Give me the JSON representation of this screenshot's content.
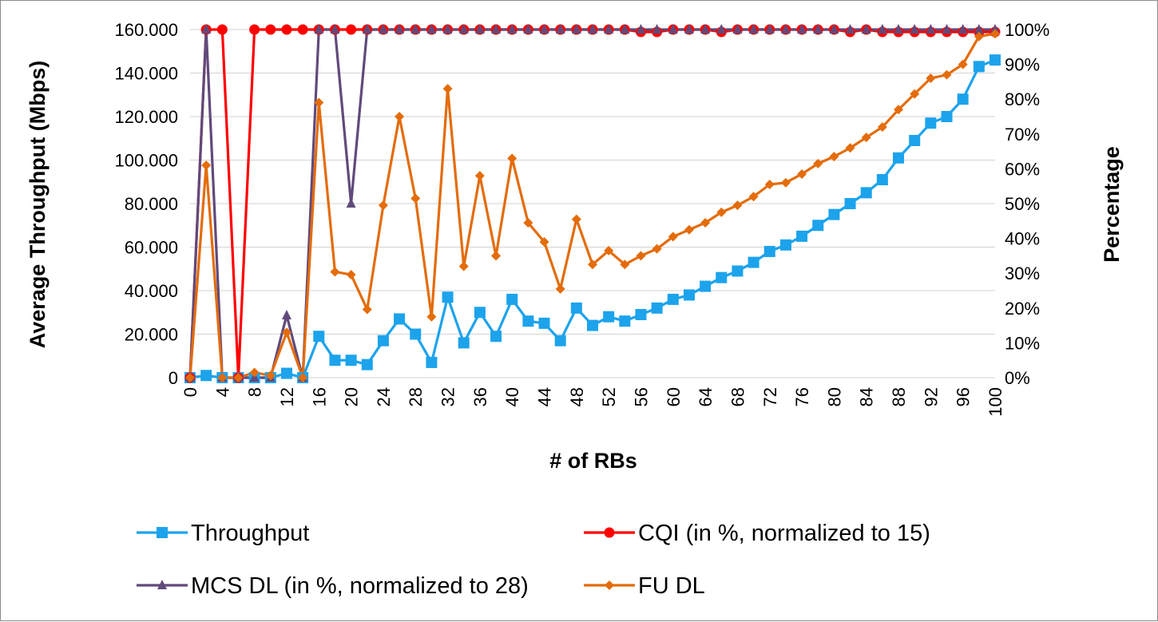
{
  "chart_data": {
    "type": "line",
    "title": "",
    "xlabel": "# of RBs",
    "ylabel": "Average Throughput (Mbps)",
    "y2label": "Percentage",
    "ylim": [
      0,
      160
    ],
    "y2lim": [
      0,
      100
    ],
    "xlim": [
      0,
      100
    ],
    "grid": "horizontal",
    "legend_position": "bottom",
    "x_ticks": [
      0,
      4,
      8,
      12,
      16,
      20,
      24,
      28,
      32,
      36,
      40,
      44,
      48,
      52,
      56,
      60,
      64,
      68,
      72,
      76,
      80,
      84,
      88,
      92,
      96,
      100
    ],
    "x_tick_labels": [
      "0",
      "4",
      "8",
      "12",
      "16",
      "20",
      "24",
      "28",
      "32",
      "36",
      "40",
      "44",
      "48",
      "52",
      "56",
      "60",
      "64",
      "68",
      "72",
      "76",
      "80",
      "84",
      "88",
      "92",
      "96",
      "100"
    ],
    "y_tick_labels": [
      "0",
      "20.000",
      "40.000",
      "60.000",
      "80.000",
      "100.000",
      "120.000",
      "140.000",
      "160.000"
    ],
    "y_ticks": [
      0,
      20,
      40,
      60,
      80,
      100,
      120,
      140,
      160
    ],
    "y2_tick_labels": [
      "0%",
      "10%",
      "20%",
      "30%",
      "40%",
      "50%",
      "60%",
      "70%",
      "80%",
      "90%",
      "100%"
    ],
    "y2_ticks": [
      0,
      10,
      20,
      30,
      40,
      50,
      60,
      70,
      80,
      90,
      100
    ],
    "series": [
      {
        "name": "Throughput",
        "axis": "left",
        "color": "#1CA3EC",
        "marker": "square",
        "x": [
          0,
          2,
          4,
          6,
          8,
          10,
          12,
          14,
          16,
          18,
          20,
          22,
          24,
          26,
          28,
          30,
          32,
          34,
          36,
          38,
          40,
          42,
          44,
          46,
          48,
          50,
          52,
          54,
          56,
          58,
          60,
          62,
          64,
          66,
          68,
          70,
          72,
          74,
          76,
          78,
          80,
          82,
          84,
          86,
          88,
          90,
          92,
          94,
          96,
          98,
          100
        ],
        "values": [
          0,
          1,
          0,
          0,
          0,
          0,
          2,
          0,
          19,
          8,
          8,
          6,
          17,
          27,
          20,
          7,
          37,
          16,
          30,
          19,
          36,
          26,
          25,
          17,
          32,
          24,
          28,
          26,
          29,
          32,
          36,
          38,
          42,
          46,
          49,
          53,
          58,
          61,
          65,
          70,
          75,
          80,
          85,
          91,
          101,
          109,
          117,
          120,
          128,
          143,
          146
        ]
      },
      {
        "name": "CQI (in %, normalized to 15)",
        "axis": "right",
        "color": "#FF0000",
        "marker": "circle",
        "x": [
          0,
          2,
          4,
          6,
          8,
          10,
          12,
          14,
          16,
          18,
          20,
          22,
          24,
          26,
          28,
          30,
          32,
          34,
          36,
          38,
          40,
          42,
          44,
          46,
          48,
          50,
          52,
          54,
          56,
          58,
          60,
          62,
          64,
          66,
          68,
          70,
          72,
          74,
          76,
          78,
          80,
          82,
          84,
          86,
          88,
          90,
          92,
          94,
          96,
          98,
          100
        ],
        "values": [
          0,
          100,
          100,
          0,
          100,
          100,
          100,
          100,
          100,
          100,
          100,
          100,
          100,
          100,
          100,
          100,
          100,
          100,
          100,
          100,
          100,
          100,
          100,
          100,
          100,
          100,
          100,
          100,
          99.3,
          99.3,
          100,
          100,
          100,
          99.3,
          100,
          100,
          100,
          100,
          100,
          100,
          100,
          99.3,
          100,
          99.3,
          99.3,
          99.3,
          99.3,
          99.3,
          99.3,
          99.3,
          99.3
        ]
      },
      {
        "name": "MCS DL (in %, normalized to 28)",
        "axis": "right",
        "color": "#604A7B",
        "marker": "triangle",
        "x": [
          0,
          2,
          4,
          6,
          8,
          10,
          12,
          14,
          16,
          18,
          20,
          22,
          24,
          26,
          28,
          30,
          32,
          34,
          36,
          38,
          40,
          42,
          44,
          46,
          48,
          50,
          52,
          54,
          56,
          58,
          60,
          62,
          64,
          66,
          68,
          70,
          72,
          74,
          76,
          78,
          80,
          82,
          84,
          86,
          88,
          90,
          92,
          94,
          96,
          98,
          100
        ],
        "values": [
          0,
          100,
          0,
          0,
          0,
          0,
          17.9,
          0,
          100,
          100,
          50,
          100,
          100,
          100,
          100,
          100,
          100,
          100,
          100,
          100,
          100,
          100,
          100,
          100,
          100,
          100,
          100,
          100,
          100,
          100,
          100,
          100,
          100,
          100,
          100,
          100,
          100,
          100,
          100,
          100,
          100,
          100,
          100,
          100,
          100,
          100,
          100,
          100,
          100,
          100,
          100
        ]
      },
      {
        "name": "FU DL",
        "axis": "right",
        "color": "#E46C0A",
        "marker": "diamond",
        "x": [
          0,
          2,
          4,
          6,
          8,
          10,
          12,
          14,
          16,
          18,
          20,
          22,
          24,
          26,
          28,
          30,
          32,
          34,
          36,
          38,
          40,
          42,
          44,
          46,
          48,
          50,
          52,
          54,
          56,
          58,
          60,
          62,
          64,
          66,
          68,
          70,
          72,
          74,
          76,
          78,
          80,
          82,
          84,
          86,
          88,
          90,
          92,
          94,
          96,
          98,
          100
        ],
        "values": [
          0,
          61,
          0,
          0,
          1.5,
          0.6,
          13,
          0,
          79,
          30.4,
          29.6,
          19.6,
          49.5,
          75,
          51.5,
          17.5,
          83,
          32,
          58,
          35,
          63,
          44.5,
          39,
          25.5,
          45.5,
          32.5,
          36.5,
          32.5,
          35,
          37,
          40.5,
          42.5,
          44.5,
          47.5,
          49.5,
          52,
          55.5,
          56,
          58.5,
          61.5,
          63.5,
          66,
          69,
          72,
          77,
          81.5,
          86,
          87,
          90,
          98,
          98.8
        ]
      }
    ]
  }
}
